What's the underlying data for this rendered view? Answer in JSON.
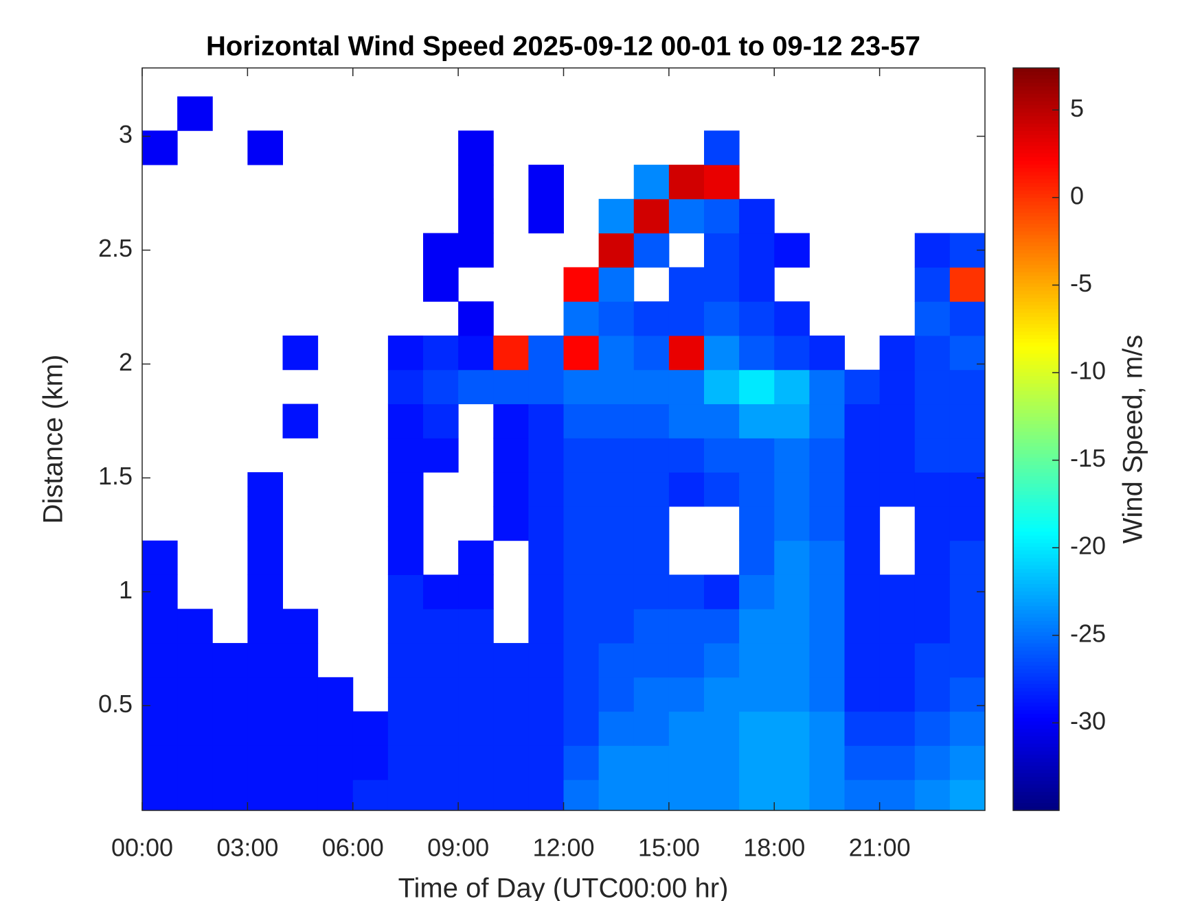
{
  "chart_data": {
    "type": "heatmap",
    "title": "Horizontal Wind Speed 2025-09-12 00-01 to 09-12 23-57",
    "x_label": "Time of Day (UTC00:00 hr)",
    "y_label": "Distance (km)",
    "colorbar_label": "Wind Speed, m/s",
    "colormap": "jet",
    "xlim": [
      0,
      24
    ],
    "ylim": [
      0.04,
      3.3
    ],
    "clim": [
      -35,
      7.4
    ],
    "xticks": [
      {
        "value": 0,
        "label": "00:00"
      },
      {
        "value": 3,
        "label": "03:00"
      },
      {
        "value": 6,
        "label": "06:00"
      },
      {
        "value": 9,
        "label": "09:00"
      },
      {
        "value": 12,
        "label": "12:00"
      },
      {
        "value": 15,
        "label": "15:00"
      },
      {
        "value": 18,
        "label": "18:00"
      },
      {
        "value": 21,
        "label": "21:00"
      }
    ],
    "yticks": [
      0.5,
      1,
      1.5,
      2,
      2.5,
      3
    ],
    "cticks": [
      5,
      0,
      -5,
      -10,
      -15,
      -20,
      -25,
      -30
    ],
    "x": [
      0.5,
      1.5,
      2.5,
      3.5,
      4.5,
      5.5,
      6.5,
      7.5,
      8.5,
      9.5,
      10.5,
      11.5,
      12.5,
      13.5,
      14.5,
      15.5,
      16.5,
      17.5,
      18.5,
      19.5,
      20.5,
      21.5,
      22.5,
      23.5
    ],
    "y": [
      0.1,
      0.25,
      0.4,
      0.55,
      0.7,
      0.85,
      1.0,
      1.15,
      1.3,
      1.45,
      1.6,
      1.75,
      1.9,
      2.05,
      2.2,
      2.35,
      2.5,
      2.65,
      2.8,
      2.95,
      3.1
    ],
    "z": [
      [
        -29,
        -29,
        -29,
        -29,
        -29,
        -29,
        -28,
        -28,
        -28,
        -28,
        -28,
        -28,
        -25,
        -24,
        -24,
        -24,
        -24,
        -23,
        -23,
        -24,
        -25,
        -25,
        -24,
        -23
      ],
      [
        -29,
        -29,
        -29,
        -29,
        -29,
        -29,
        -29,
        -28,
        -28,
        -28,
        -28,
        -28,
        -26,
        -24,
        -24,
        -24,
        -24,
        -23,
        -23,
        -24,
        -26,
        -26,
        -25,
        -24
      ],
      [
        -29,
        -29,
        -29,
        -29,
        -29,
        -29,
        -29,
        -28,
        -28,
        -28,
        -28,
        -28,
        -27,
        -25,
        -25,
        -24,
        -24,
        -23,
        -23,
        -24,
        -27,
        -27,
        -26,
        -25
      ],
      [
        -29,
        -29,
        -29,
        -29,
        -29,
        -29,
        null,
        -28,
        -28,
        -28,
        -28,
        -28,
        -27,
        -26,
        -25,
        -25,
        -24,
        -24,
        -24,
        -25,
        -28,
        -28,
        -27,
        -26
      ],
      [
        -29,
        -29,
        -29,
        -29,
        -29,
        null,
        null,
        -28,
        -28,
        -28,
        -28,
        -28,
        -27,
        -26,
        -26,
        -26,
        -25,
        -24,
        -24,
        -25,
        -28,
        -28,
        -27,
        -27
      ],
      [
        -29,
        -29,
        null,
        -29,
        -29,
        null,
        null,
        -28,
        -28,
        -28,
        null,
        -28,
        -27,
        -27,
        -26,
        -26,
        -26,
        -24,
        -24,
        -25,
        -28,
        -28,
        -28,
        -27
      ],
      [
        -29,
        null,
        null,
        -29,
        null,
        null,
        null,
        -28,
        -29,
        -29,
        null,
        -28,
        -27,
        -27,
        -27,
        -27,
        -28,
        -25,
        -24,
        -25,
        -28,
        -28,
        -28,
        -27
      ],
      [
        -29,
        null,
        null,
        -29,
        null,
        null,
        null,
        -29,
        null,
        -29,
        null,
        -28,
        -27,
        -27,
        -27,
        null,
        null,
        -26,
        -24,
        -25,
        -28,
        null,
        -28,
        -27
      ],
      [
        null,
        null,
        null,
        -29,
        null,
        null,
        null,
        -29,
        null,
        null,
        -29,
        -28,
        -27,
        -27,
        -27,
        null,
        null,
        -26,
        -25,
        -26,
        -28,
        null,
        -28,
        -28
      ],
      [
        null,
        null,
        null,
        -29,
        null,
        null,
        null,
        -29,
        null,
        null,
        -29,
        -28,
        -27,
        -27,
        -27,
        -28,
        -27,
        -26,
        -25,
        -26,
        -28,
        -28,
        -28,
        -28
      ],
      [
        null,
        null,
        null,
        null,
        null,
        null,
        null,
        -29,
        -29,
        null,
        -29,
        -28,
        -27,
        -27,
        -27,
        -27,
        -26,
        -26,
        -25,
        -26,
        -28,
        -28,
        -27,
        -27
      ],
      [
        null,
        null,
        null,
        null,
        -29,
        null,
        null,
        -29,
        -28,
        null,
        -29,
        -28,
        -26,
        -26,
        -26,
        -25,
        -25,
        -23,
        -23,
        -25,
        -28,
        -28,
        -27,
        -27
      ],
      [
        null,
        null,
        null,
        null,
        null,
        null,
        null,
        -28,
        -27,
        -26,
        -26,
        -26,
        -25,
        -25,
        -25,
        -25,
        -22,
        -20,
        -22,
        -25,
        -27,
        -28,
        -27,
        -27
      ],
      [
        null,
        null,
        null,
        null,
        -29,
        null,
        null,
        -29,
        -28,
        -29,
        1,
        -26,
        2,
        -25,
        -26,
        3,
        -24,
        -26,
        -27,
        -28,
        null,
        -28,
        -27,
        -26
      ],
      [
        null,
        null,
        null,
        null,
        null,
        null,
        null,
        null,
        null,
        -30,
        null,
        null,
        -25,
        -26,
        -27,
        -27,
        -26,
        -27,
        -28,
        null,
        null,
        null,
        -26,
        -27
      ],
      [
        null,
        null,
        null,
        null,
        null,
        null,
        null,
        null,
        -30,
        null,
        null,
        null,
        2,
        -25,
        null,
        -27,
        -27,
        -28,
        null,
        null,
        null,
        null,
        -27,
        0
      ],
      [
        null,
        null,
        null,
        null,
        null,
        null,
        null,
        null,
        -30,
        -30,
        null,
        null,
        null,
        4,
        -26,
        null,
        -27,
        -28,
        -29,
        null,
        null,
        null,
        -28,
        -27
      ],
      [
        null,
        null,
        null,
        null,
        null,
        null,
        null,
        null,
        null,
        -30,
        null,
        -30,
        null,
        -24,
        4,
        -25,
        -26,
        -28,
        null,
        null,
        null,
        null,
        null,
        null
      ],
      [
        null,
        null,
        null,
        null,
        null,
        null,
        null,
        null,
        null,
        -30,
        null,
        -30,
        null,
        null,
        -24,
        4,
        3,
        null,
        null,
        null,
        null,
        null,
        null,
        null
      ],
      [
        -30,
        null,
        null,
        -30,
        null,
        null,
        null,
        null,
        null,
        -30,
        null,
        null,
        null,
        null,
        null,
        null,
        -27,
        null,
        null,
        null,
        null,
        null,
        null,
        null
      ],
      [
        null,
        -30,
        null,
        null,
        null,
        null,
        null,
        null,
        null,
        null,
        null,
        null,
        null,
        null,
        null,
        null,
        null,
        null,
        null,
        null,
        null,
        null,
        null,
        null
      ]
    ]
  }
}
